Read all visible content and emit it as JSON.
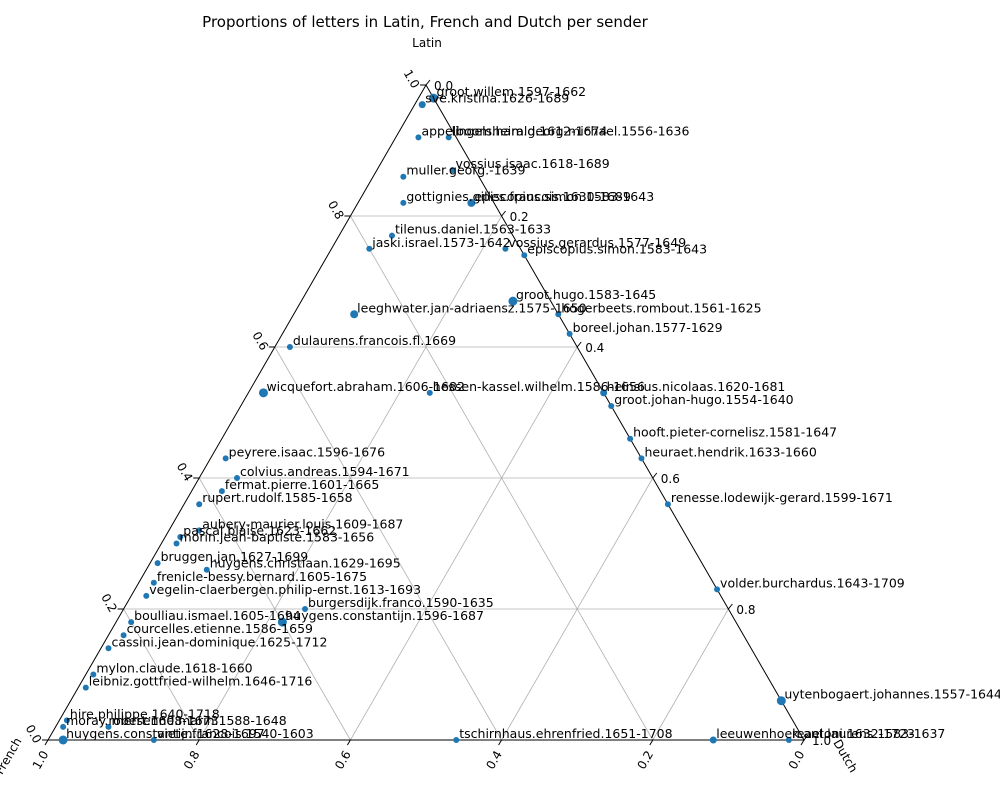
{
  "chart_data": {
    "type": "scatter",
    "subtype": "ternary",
    "title": "Proportions of letters in Latin, French and Dutch per sender",
    "axes": {
      "top": "Latin",
      "bottom_left": "French",
      "bottom_right": "Dutch"
    },
    "axis_range": [
      0,
      1
    ],
    "grid": true,
    "ticks": {
      "french": [
        "0.0",
        "0.2",
        "0.4",
        "0.6",
        "0.8",
        "1.0"
      ],
      "latin": [
        "0.0",
        "0.2",
        "0.4",
        "0.6",
        "0.8",
        "1.0"
      ],
      "dutch": [
        "0.0",
        "0.2",
        "0.4",
        "0.6",
        "0.8",
        "1.0"
      ]
    },
    "point_color": "#1f77b4",
    "points": [
      {
        "name": "groot.willem.1597-1662",
        "latin": 0.98,
        "french": 0.0,
        "dutch": 0.02,
        "size": 4.5
      },
      {
        "name": "sve.kristina.1626-1689",
        "latin": 0.97,
        "french": 0.02,
        "dutch": 0.01,
        "size": 3.5
      },
      {
        "name": "appelboom.harald.1612-1674",
        "latin": 0.92,
        "french": 0.05,
        "dutch": 0.03,
        "size": 3
      },
      {
        "name": "lingelsheim.georg-michael.1556-1636",
        "latin": 0.92,
        "french": 0.01,
        "dutch": 0.07,
        "size": 3
      },
      {
        "name": "vossius.isaac.1618-1689",
        "latin": 0.87,
        "french": 0.03,
        "dutch": 0.1,
        "size": 3
      },
      {
        "name": "muller.georg.-1639",
        "latin": 0.86,
        "french": 0.1,
        "dutch": 0.04,
        "size": 3
      },
      {
        "name": "gottignies.gilles.francois.1630-1689",
        "latin": 0.82,
        "french": 0.12,
        "dutch": 0.06,
        "size": 3
      },
      {
        "name": "episcopius.simon.1583-1643",
        "latin": 0.82,
        "french": 0.03,
        "dutch": 0.15,
        "size": 4
      },
      {
        "name": "tilenus.daniel.1563-1633",
        "latin": 0.77,
        "french": 0.16,
        "dutch": 0.07,
        "size": 3
      },
      {
        "name": "jaski.israel.1573-1642",
        "latin": 0.75,
        "french": 0.2,
        "dutch": 0.05,
        "size": 3
      },
      {
        "name": "vossius.gerardus.1577-1649",
        "latin": 0.75,
        "french": 0.02,
        "dutch": 0.23,
        "size": 3
      },
      {
        "name": "episcopius.simon.1583-1643",
        "latin": 0.74,
        "french": 0.0,
        "dutch": 0.26,
        "size": 3
      },
      {
        "name": "groot.hugo.1583-1645",
        "latin": 0.67,
        "french": 0.05,
        "dutch": 0.28,
        "size": 4.5
      },
      {
        "name": "leeghwater.jan-adriaensz.1575-1650",
        "latin": 0.65,
        "french": 0.27,
        "dutch": 0.08,
        "size": 4
      },
      {
        "name": "hogerbeets.rombout.1561-1625",
        "latin": 0.65,
        "french": 0.0,
        "dutch": 0.35,
        "size": 3
      },
      {
        "name": "boreel.johan.1577-1629",
        "latin": 0.62,
        "french": 0.0,
        "dutch": 0.38,
        "size": 3
      },
      {
        "name": "dulaurens.francois.fl.1669",
        "latin": 0.6,
        "french": 0.38,
        "dutch": 0.02,
        "size": 3
      },
      {
        "name": "wicquefort.abraham.1606-1682",
        "latin": 0.53,
        "french": 0.45,
        "dutch": 0.02,
        "size": 4.5
      },
      {
        "name": "hessen-kassel.wilhelm.1586-1656",
        "latin": 0.53,
        "french": 0.23,
        "dutch": 0.24,
        "size": 3
      },
      {
        "name": "heinsius.nicolaas.1620-1681",
        "latin": 0.53,
        "french": 0.0,
        "dutch": 0.47,
        "size": 3.5
      },
      {
        "name": "groot.johan-hugo.1554-1640",
        "latin": 0.51,
        "french": 0.0,
        "dutch": 0.49,
        "size": 3
      },
      {
        "name": "hooft.pieter-cornelisz.1581-1647",
        "latin": 0.46,
        "french": 0.0,
        "dutch": 0.54,
        "size": 3
      },
      {
        "name": "heuraet.hendrik.1633-1660",
        "latin": 0.43,
        "french": 0.0,
        "dutch": 0.57,
        "size": 3
      },
      {
        "name": "peyrere.isaac.1596-1676",
        "latin": 0.43,
        "french": 0.55,
        "dutch": 0.02,
        "size": 3
      },
      {
        "name": "colvius.andreas.1594-1671",
        "latin": 0.4,
        "french": 0.55,
        "dutch": 0.05,
        "size": 3
      },
      {
        "name": "fermat.pierre.1601-1665",
        "latin": 0.38,
        "french": 0.58,
        "dutch": 0.04,
        "size": 3
      },
      {
        "name": "rupert.rudolf.1585-1658",
        "latin": 0.36,
        "french": 0.62,
        "dutch": 0.02,
        "size": 3
      },
      {
        "name": "renesse.lodewijk-gerard.1599-1671",
        "latin": 0.36,
        "french": 0.0,
        "dutch": 0.64,
        "size": 3
      },
      {
        "name": "aubery-maurier.louis.1609-1687",
        "latin": 0.32,
        "french": 0.64,
        "dutch": 0.04,
        "size": 3
      },
      {
        "name": "pascal.blaise.1623-1662",
        "latin": 0.31,
        "french": 0.67,
        "dutch": 0.02,
        "size": 3
      },
      {
        "name": "morin.jean-baptiste.1583-1656",
        "latin": 0.3,
        "french": 0.68,
        "dutch": 0.02,
        "size": 3
      },
      {
        "name": "huygens.christiaan.1629-1695",
        "latin": 0.26,
        "french": 0.66,
        "dutch": 0.08,
        "size": 3
      },
      {
        "name": "bruggen.jan.1627-1699",
        "latin": 0.27,
        "french": 0.72,
        "dutch": 0.01,
        "size": 3
      },
      {
        "name": "frenicle-bessy.bernard.1605-1675",
        "latin": 0.24,
        "french": 0.74,
        "dutch": 0.02,
        "size": 3
      },
      {
        "name": "vegelin-claerbergen.philip-ernst.1613-1693",
        "latin": 0.22,
        "french": 0.76,
        "dutch": 0.02,
        "size": 3
      },
      {
        "name": "burgersdijk.franco.1590-1635",
        "latin": 0.2,
        "french": 0.56,
        "dutch": 0.24,
        "size": 3
      },
      {
        "name": "huygens.constantijn.1596-1687",
        "latin": 0.18,
        "french": 0.6,
        "dutch": 0.22,
        "size": 4.5
      },
      {
        "name": "boulliau.ismael.1605-1694",
        "latin": 0.18,
        "french": 0.8,
        "dutch": 0.02,
        "size": 3
      },
      {
        "name": "courcelles.etienne.1586-1659",
        "latin": 0.16,
        "french": 0.82,
        "dutch": 0.02,
        "size": 3
      },
      {
        "name": "cassini.jean-dominique.1625-1712",
        "latin": 0.14,
        "french": 0.85,
        "dutch": 0.01,
        "size": 3
      },
      {
        "name": "mylon.claude.1618-1660",
        "latin": 0.1,
        "french": 0.89,
        "dutch": 0.01,
        "size": 3
      },
      {
        "name": "leibniz.gottfried-wilhelm.1646-1716",
        "latin": 0.08,
        "french": 0.91,
        "dutch": 0.01,
        "size": 3
      },
      {
        "name": "hire.philippe.1640-1718",
        "latin": 0.03,
        "french": 0.96,
        "dutch": 0.01,
        "size": 3
      },
      {
        "name": "moray.robert.1608-1673",
        "latin": 0.02,
        "french": 0.97,
        "dutch": 0.01,
        "size": 3
      },
      {
        "name": "mersenne.marin.1588-1648",
        "latin": 0.02,
        "french": 0.91,
        "dutch": 0.07,
        "size": 3
      },
      {
        "name": "huygens.constantijn.1628-1697",
        "latin": 0.0,
        "french": 0.98,
        "dutch": 0.02,
        "size": 4.5
      },
      {
        "name": "viete.francois.1540-1603",
        "latin": 0.0,
        "french": 0.86,
        "dutch": 0.14,
        "size": 3
      },
      {
        "name": "tschirnhaus.ehrenfried.1651-1708",
        "latin": 0.0,
        "french": 0.46,
        "dutch": 0.54,
        "size": 3
      },
      {
        "name": "uytenbogaert.johannes.1557-1644",
        "latin": 0.06,
        "french": 0.0,
        "dutch": 0.94,
        "size": 4.5
      },
      {
        "name": "volder.burchardus.1643-1709",
        "latin": 0.23,
        "french": 0.0,
        "dutch": 0.77,
        "size": 3
      },
      {
        "name": "leeuwenhoek.antoni.1632-1723",
        "latin": 0.0,
        "french": 0.12,
        "dutch": 0.88,
        "size": 3.5
      },
      {
        "name": "reael.laurens.1583-1637",
        "latin": 0.0,
        "french": 0.02,
        "dutch": 0.98,
        "size": 3
      }
    ]
  }
}
